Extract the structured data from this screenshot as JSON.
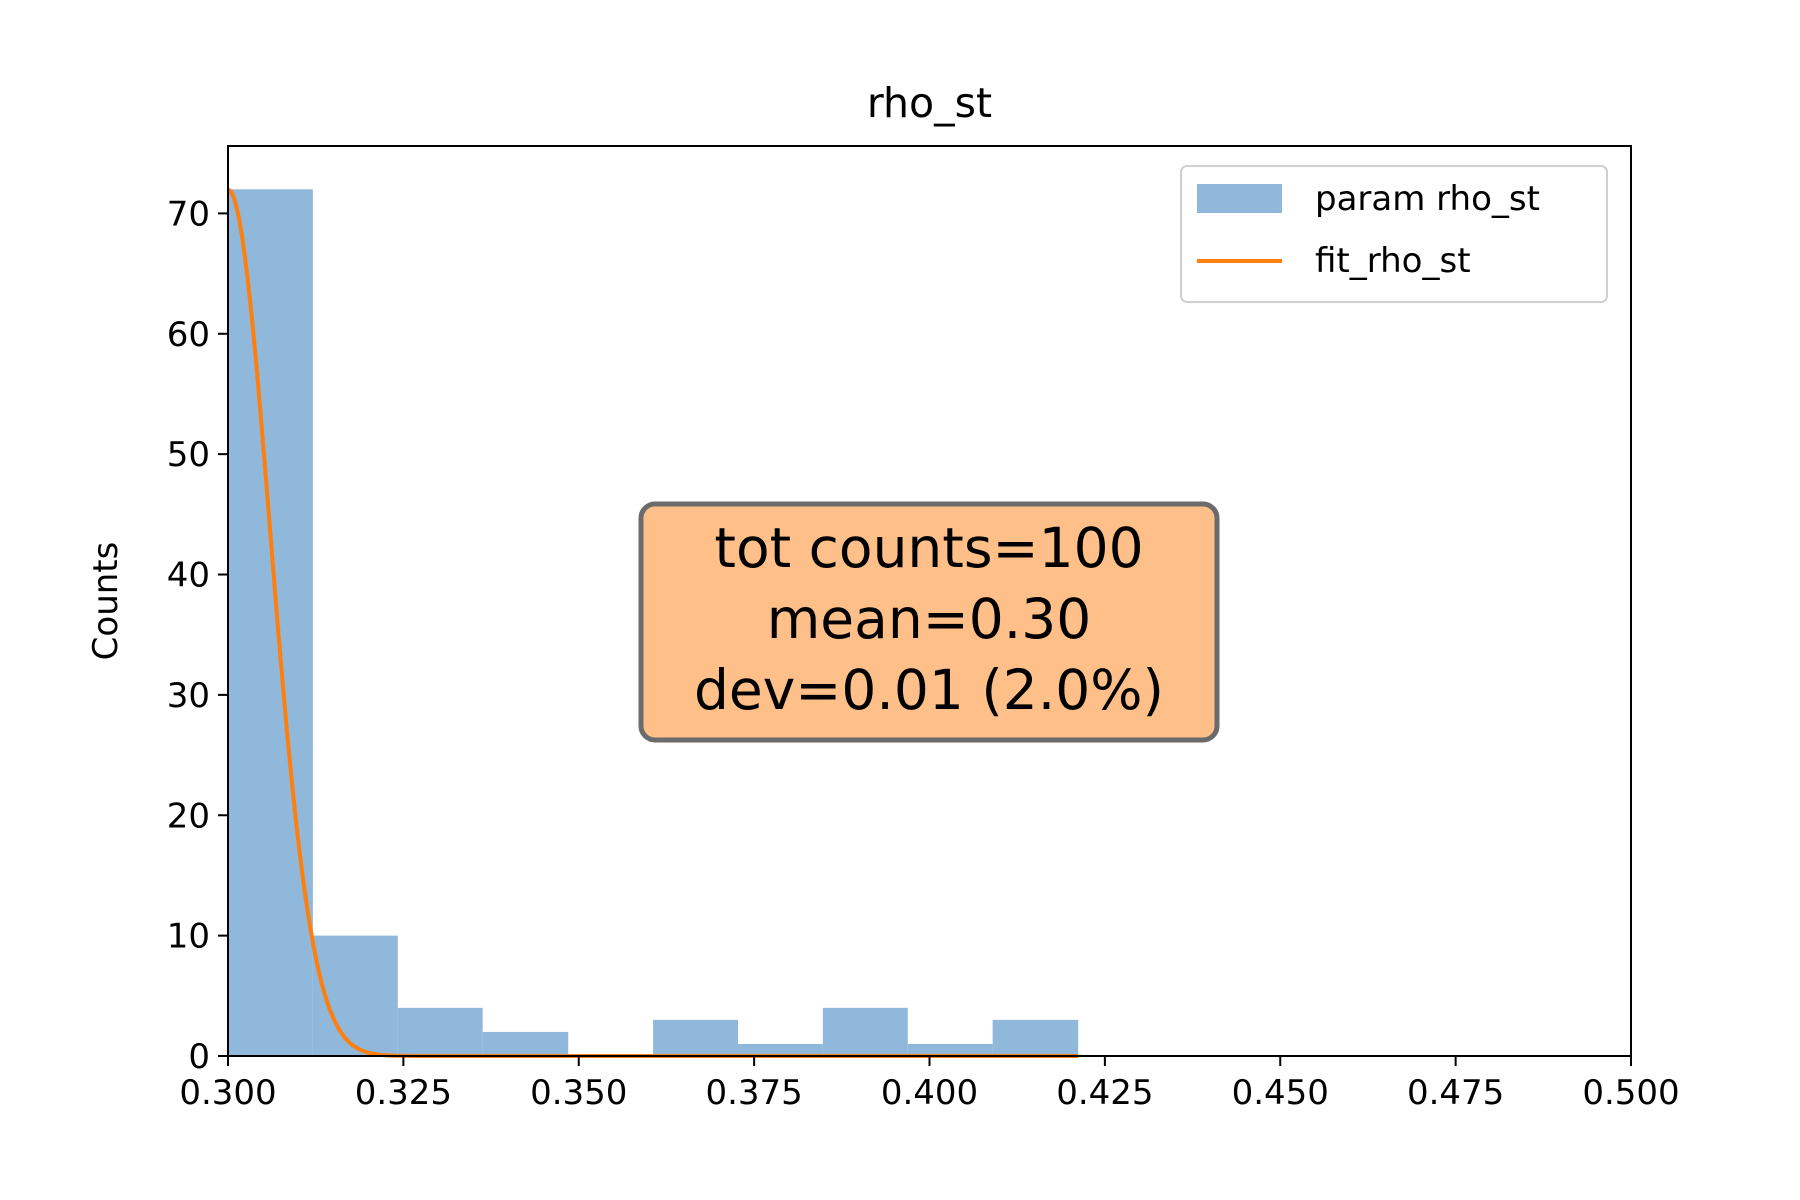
{
  "chart_data": {
    "type": "bar",
    "title": "rho_st",
    "xlabel": "",
    "ylabel": "Counts",
    "xlim": [
      0.3,
      0.5
    ],
    "ylim": [
      0,
      75.6
    ],
    "x_ticks": [
      "0.300",
      "0.325",
      "0.350",
      "0.375",
      "0.400",
      "0.425",
      "0.450",
      "0.475",
      "0.500"
    ],
    "y_ticks": [
      "0",
      "10",
      "20",
      "30",
      "40",
      "50",
      "60",
      "70"
    ],
    "legend_position": "top-right",
    "grid": false,
    "series": [
      {
        "name": "param rho_st",
        "type": "histogram",
        "color": "#8fb8da",
        "bins": [
          {
            "x0": 0.3,
            "x1": 0.3121,
            "value": 72
          },
          {
            "x0": 0.3121,
            "x1": 0.3242,
            "value": 10
          },
          {
            "x0": 0.3242,
            "x1": 0.3363,
            "value": 4
          },
          {
            "x0": 0.3363,
            "x1": 0.3485,
            "value": 2
          },
          {
            "x0": 0.3485,
            "x1": 0.3606,
            "value": 0
          },
          {
            "x0": 0.3606,
            "x1": 0.3727,
            "value": 3
          },
          {
            "x0": 0.3727,
            "x1": 0.3848,
            "value": 1
          },
          {
            "x0": 0.3848,
            "x1": 0.3969,
            "value": 4
          },
          {
            "x0": 0.3969,
            "x1": 0.409,
            "value": 1
          },
          {
            "x0": 0.409,
            "x1": 0.4212,
            "value": 3
          }
        ]
      },
      {
        "name": "fit_rho_st",
        "type": "line",
        "color": "#ff7f0e",
        "gaussian": {
          "amplitude": 72,
          "mu": 0.3,
          "sigma": 0.006
        },
        "x_range": [
          0.3,
          0.4212
        ]
      }
    ],
    "annotation": {
      "lines": [
        "tot counts=100",
        "mean=0.30",
        "dev=0.01 (2.0%)"
      ],
      "background": "#ffbf88",
      "border": "#6b6b6b"
    }
  }
}
